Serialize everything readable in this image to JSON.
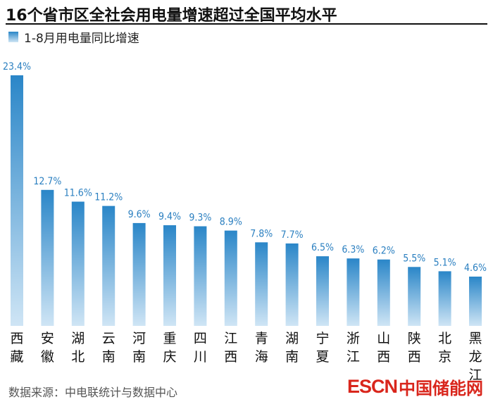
{
  "header": {
    "title": "16个省市区全社会用电量增速超过全国平均水平"
  },
  "footer": {
    "source": "数据来源：中电联统计与数据中心",
    "brand_latin": "ESCN",
    "brand_cjk": "中国储能网"
  },
  "colors": {
    "bar_top": "#2a86c8",
    "bar_bottom": "#cfe5f5",
    "label": "#2a7fc0",
    "brand": "#d9261c"
  },
  "chart_data": {
    "type": "bar",
    "categories": [
      "西藏",
      "安徽",
      "湖北",
      "云南",
      "河南",
      "重庆",
      "四川",
      "江西",
      "青海",
      "湖南",
      "宁夏",
      "浙江",
      "山西",
      "陕西",
      "北京",
      "黑龙江"
    ],
    "series": [
      {
        "name": "1-8月用电量同比增速",
        "values": [
          23.4,
          12.7,
          11.6,
          11.2,
          9.6,
          9.4,
          9.3,
          8.9,
          7.8,
          7.7,
          6.5,
          6.3,
          6.2,
          5.5,
          5.1,
          4.6
        ],
        "labels": [
          "23.4%",
          "12.7%",
          "11.6%",
          "11.2%",
          "9.6%",
          "9.4%",
          "9.3%",
          "8.9%",
          "7.8%",
          "7.7%",
          "6.5%",
          "6.3%",
          "6.2%",
          "5.5%",
          "5.1%",
          "4.6%"
        ]
      }
    ],
    "ylim": [
      0,
      23.4
    ],
    "legend_position": "top-left",
    "grid": false
  }
}
